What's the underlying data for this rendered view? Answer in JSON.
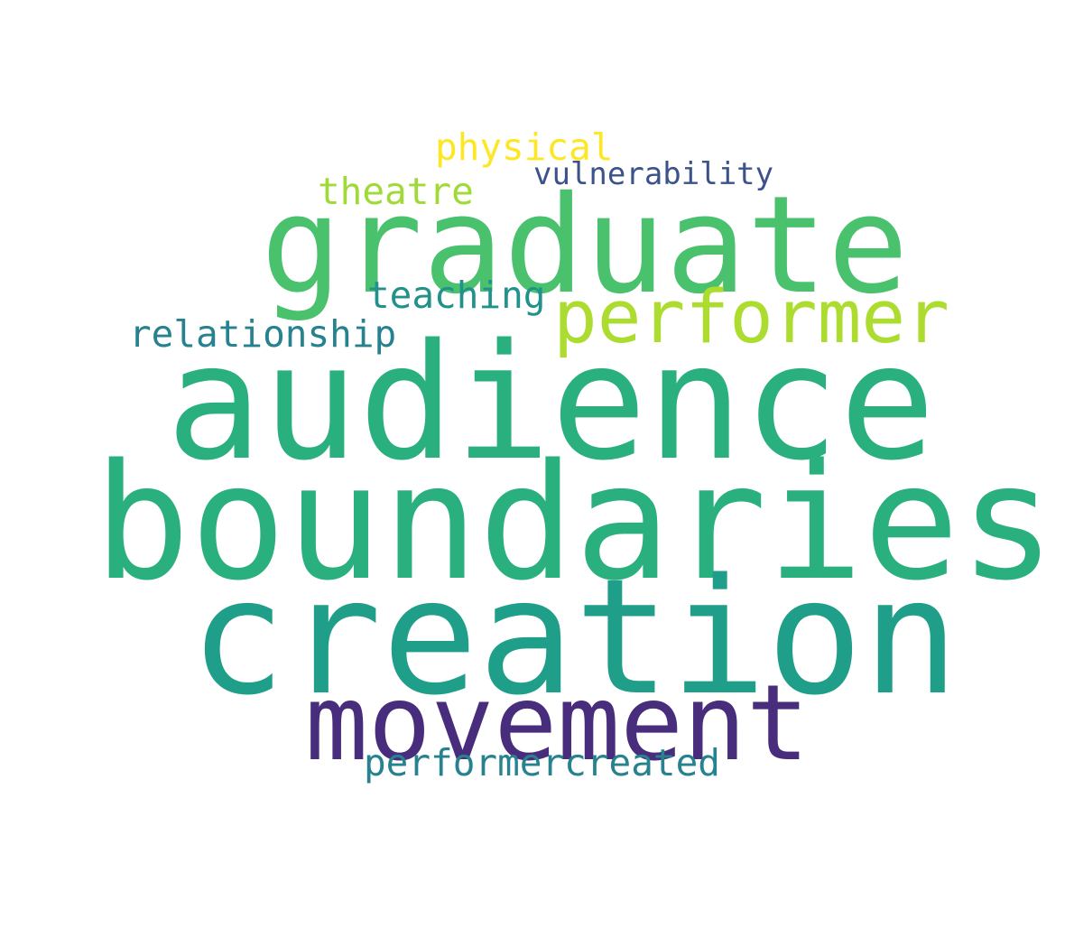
{
  "words": {
    "audience": {
      "text": "audience",
      "color": "#2ab07f"
    },
    "boundaries": {
      "text": "boundaries",
      "color": "#2ab07f"
    },
    "creation": {
      "text": "creation",
      "color": "#1f9e89"
    },
    "graduate": {
      "text": "graduate",
      "color": "#4ac16d"
    },
    "movement": {
      "text": "movement",
      "color": "#472d7b"
    },
    "performer": {
      "text": "performer",
      "color": "#addc30"
    },
    "relationship": {
      "text": "relationship",
      "color": "#26828e"
    },
    "teaching": {
      "text": "teaching",
      "color": "#21918c"
    },
    "theatre": {
      "text": "theatre",
      "color": "#a0da39"
    },
    "physical": {
      "text": "physical",
      "color": "#fde725"
    },
    "vulnerability": {
      "text": "vulnerability",
      "color": "#3b528b"
    },
    "performercreated": {
      "text": "performercreated",
      "color": "#26828e"
    }
  }
}
